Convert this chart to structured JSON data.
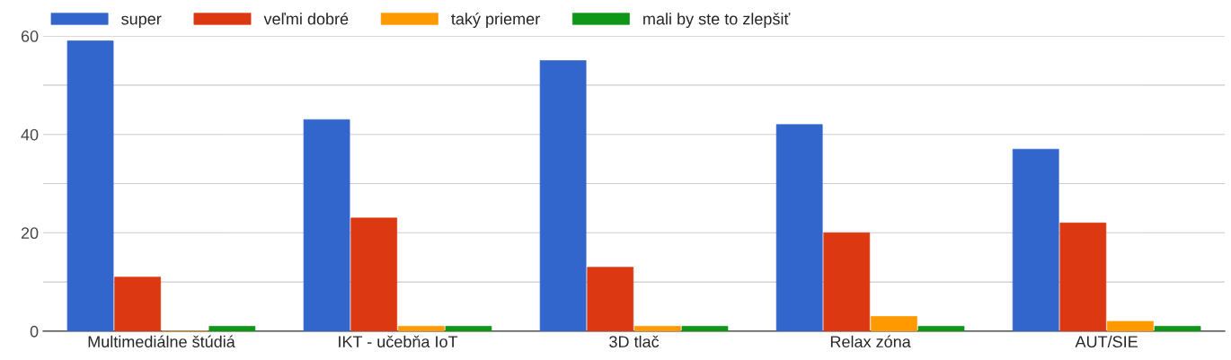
{
  "chart_data": {
    "type": "bar",
    "categories": [
      "Multimediálne štúdiá",
      "IKT - učebňa IoT",
      "3D tlač",
      "Relax zóna",
      "AUT/SIE"
    ],
    "series": [
      {
        "name": "super",
        "color": "#3366cc",
        "values": [
          59,
          43,
          55,
          42,
          37
        ]
      },
      {
        "name": "veľmi dobré",
        "color": "#dc3912",
        "values": [
          11,
          23,
          13,
          20,
          22
        ]
      },
      {
        "name": "taký priemer",
        "color": "#ff9900",
        "values": [
          0,
          1,
          1,
          3,
          2
        ]
      },
      {
        "name": "mali by ste to zlepšiť",
        "color": "#109618",
        "values": [
          1,
          1,
          1,
          1,
          1
        ]
      }
    ],
    "ylim": [
      0,
      60
    ],
    "yticks": [
      0,
      {
        "value": 10,
        "label": null
      },
      20,
      {
        "value": 30,
        "label": null
      },
      40,
      {
        "value": 50,
        "label": null
      },
      60
    ],
    "grid": "y",
    "legend": "top left"
  }
}
